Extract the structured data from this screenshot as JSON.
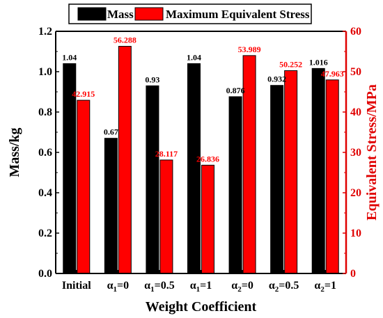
{
  "chart_data": {
    "type": "bar",
    "categories": [
      "Initial",
      "α1=0",
      "α1=0.5",
      "α1=1",
      "α2=0",
      "α2=0.5",
      "α2=1"
    ],
    "category_labels": [
      {
        "base": "Initial",
        "sub": ""
      },
      {
        "base": "α",
        "sub": "1",
        "tail": "=0"
      },
      {
        "base": "α",
        "sub": "1",
        "tail": "=0.5"
      },
      {
        "base": "α",
        "sub": "1",
        "tail": "=1"
      },
      {
        "base": "α",
        "sub": "2",
        "tail": "=0"
      },
      {
        "base": "α",
        "sub": "2",
        "tail": "=0.5"
      },
      {
        "base": "α",
        "sub": "2",
        "tail": "=1"
      }
    ],
    "series": [
      {
        "name": "Mass",
        "axis": "left",
        "color": "#000000",
        "values": [
          1.04,
          0.67,
          0.93,
          1.04,
          0.876,
          0.932,
          1.016
        ],
        "labels": [
          "1.04",
          "0.67",
          "0.93",
          "1.04",
          "0.876",
          "0.932",
          "1.016"
        ]
      },
      {
        "name": "Maximum Equivalent Stress",
        "axis": "right",
        "color": "#ff0000",
        "values": [
          42.915,
          56.288,
          28.117,
          26.836,
          53.989,
          50.252,
          47.963
        ],
        "labels": [
          "42.915",
          "56.288",
          "28.117",
          "26.836",
          "53.989",
          "50.252",
          "47.963"
        ]
      }
    ],
    "xlabel": "Weight Coefficient",
    "ylabel": "Mass/kg",
    "ylabel_right": "Equivalent Stress/MPa",
    "ylim": [
      0,
      1.2
    ],
    "ylim_right": [
      0,
      60
    ],
    "yticks": [
      "0.0",
      "0.2",
      "0.4",
      "0.6",
      "0.8",
      "1.0",
      "1.2"
    ],
    "yticks_right": [
      "0",
      "10",
      "20",
      "30",
      "40",
      "50",
      "60"
    ],
    "right_axis_color": "#e00000",
    "label_color_right": "#ff0000",
    "grid": false,
    "legend": "top"
  }
}
